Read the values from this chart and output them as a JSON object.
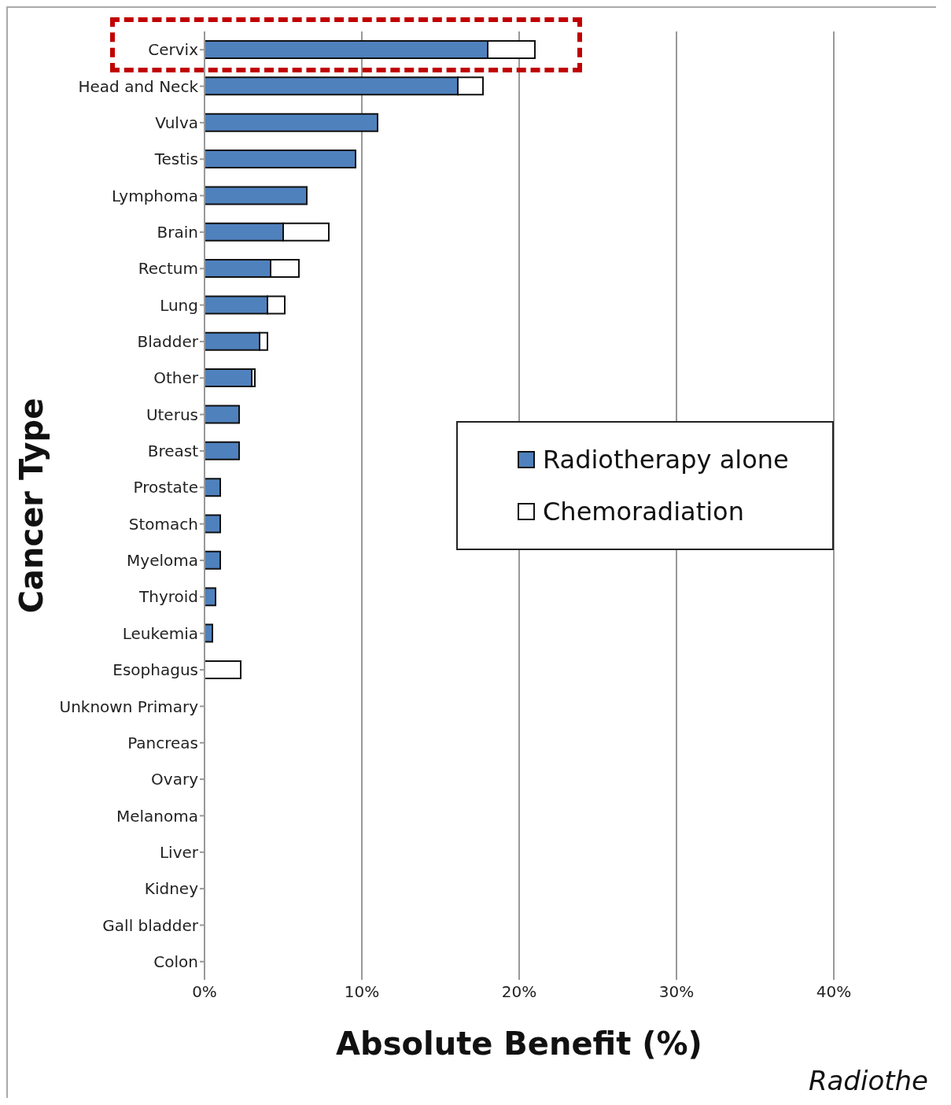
{
  "chart_data": {
    "type": "bar",
    "orientation": "horizontal",
    "stacked": true,
    "xlabel": "Absolute Benefit (%)",
    "ylabel": "Cancer Type",
    "categories": [
      "Cervix",
      "Head and Neck",
      "Vulva",
      "Testis",
      "Lymphoma",
      "Brain",
      "Rectum",
      "Lung",
      "Bladder",
      "Other",
      "Uterus",
      "Breast",
      "Prostate",
      "Stomach",
      "Myeloma",
      "Thyroid",
      "Leukemia",
      "Esophagus",
      "Unknown Primary",
      "Pancreas",
      "Ovary",
      "Melanoma",
      "Liver",
      "Kidney",
      "Gall bladder",
      "Colon"
    ],
    "series": [
      {
        "name": "Radiotherapy alone",
        "color": "#4f81bd",
        "values": [
          18.0,
          16.1,
          11.0,
          9.6,
          6.5,
          5.0,
          4.2,
          4.0,
          3.5,
          3.0,
          2.2,
          2.2,
          1.0,
          1.0,
          1.0,
          0.7,
          0.5,
          0,
          0,
          0,
          0,
          0,
          0,
          0,
          0,
          0
        ]
      },
      {
        "name": "Chemoradiation",
        "color": "#ffffff",
        "values": [
          3.0,
          1.6,
          0,
          0,
          0,
          2.9,
          1.8,
          1.1,
          0.5,
          0.2,
          0,
          0,
          0,
          0,
          0,
          0,
          0,
          2.3,
          0,
          0,
          0,
          0,
          0,
          0,
          0,
          0
        ]
      }
    ],
    "xlim": [
      0,
      40
    ],
    "xticks": [
      {
        "value": 0,
        "label": "0%"
      },
      {
        "value": 10,
        "label": "10%"
      },
      {
        "value": 20,
        "label": "20%"
      },
      {
        "value": 30,
        "label": "30%"
      },
      {
        "value": 40,
        "label": "40%"
      }
    ],
    "grid": "x",
    "legend": "right",
    "annotations": [
      "Radiothe"
    ]
  }
}
